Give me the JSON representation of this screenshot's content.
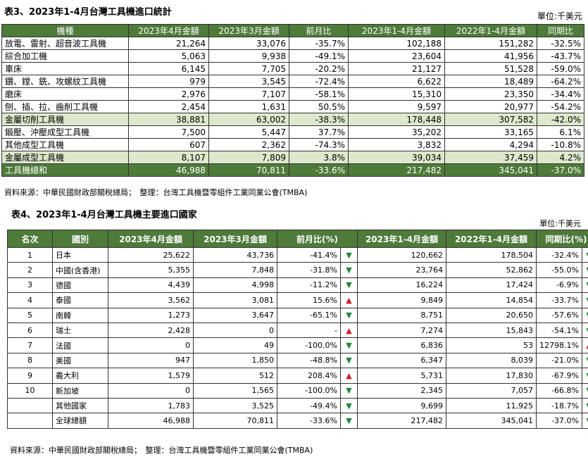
{
  "table3": {
    "title": "表3、2023年1-4月台灣工具機進口統計",
    "unit": "單位:千美元",
    "headers": [
      "機種",
      "2023年4月金額",
      "2023年3月金額",
      "前月比",
      "2023年1-4月金額",
      "2022年1-4月金額",
      "同期比"
    ],
    "rows": [
      {
        "type": "normal",
        "cells": [
          "放電、雷射、超音波工具機",
          "21,264",
          "33,076",
          "-35.7%",
          "102,188",
          "151,282",
          "-32.5%"
        ]
      },
      {
        "type": "normal",
        "cells": [
          "綜合加工機",
          "5,063",
          "9,938",
          "-49.1%",
          "23,604",
          "41,956",
          "-43.7%"
        ]
      },
      {
        "type": "normal",
        "cells": [
          "車床",
          "6,145",
          "7,705",
          "-20.2%",
          "21,127",
          "51,528",
          "-59.0%"
        ]
      },
      {
        "type": "normal",
        "cells": [
          "鑽、鏜、銑、攻螺紋工具機",
          "979",
          "3,545",
          "-72.4%",
          "6,622",
          "18,489",
          "-64.2%"
        ]
      },
      {
        "type": "normal",
        "cells": [
          "磨床",
          "2,976",
          "7,107",
          "-58.1%",
          "15,310",
          "23,350",
          "-34.4%"
        ]
      },
      {
        "type": "normal",
        "cells": [
          "刨、插、拉、齒削工具機",
          "2,454",
          "1,631",
          "50.5%",
          "9,597",
          "20,977",
          "-54.2%"
        ]
      },
      {
        "type": "sub",
        "cells": [
          "金屬切削工具機",
          "38,881",
          "63,002",
          "-38.3%",
          "178,448",
          "307,582",
          "-42.0%"
        ]
      },
      {
        "type": "normal",
        "cells": [
          "鍛壓、沖壓成型工具機",
          "7,500",
          "5,447",
          "37.7%",
          "35,202",
          "33,165",
          "6.1%"
        ]
      },
      {
        "type": "normal",
        "cells": [
          "其他成型工具機",
          "607",
          "2,362",
          "-74.3%",
          "3,832",
          "4,294",
          "-10.8%"
        ]
      },
      {
        "type": "sub",
        "cells": [
          "金屬成型工具機",
          "8,107",
          "7,809",
          "3.8%",
          "39,034",
          "37,459",
          "4.2%"
        ]
      },
      {
        "type": "total",
        "cells": [
          "工具機總和",
          "46,988",
          "70,811",
          "-33.6%",
          "217,482",
          "345,041",
          "-37.0%"
        ]
      }
    ],
    "source": "資料來源：中華民國財政部關稅總局；　整理：台灣工具機暨零組件工業同業公會(TMBA)"
  },
  "table4": {
    "title": "表4、2023年1-4月台灣工具機主要進口國家",
    "unit": "單位:千美元",
    "headers": [
      "名次",
      "國別",
      "2023年4月金額",
      "2023年3月金額",
      "前月比(%)",
      "2023年1-4月金額",
      "2022年1-4月金額",
      "同期比(%)"
    ],
    "rows": [
      {
        "rank": "1",
        "country": "日本",
        "apr": "25,622",
        "mar": "43,736",
        "mom": "-41.4%",
        "mom_dir": "down",
        "ytd23": "120,662",
        "ytd22": "178,504",
        "yoy": "-32.4%",
        "yoy_dir": "down"
      },
      {
        "rank": "2",
        "country": "中國(含香港)",
        "apr": "5,355",
        "mar": "7,848",
        "mom": "-31.8%",
        "mom_dir": "down",
        "ytd23": "23,764",
        "ytd22": "52,862",
        "yoy": "-55.0%",
        "yoy_dir": "down"
      },
      {
        "rank": "3",
        "country": "德國",
        "apr": "4,439",
        "mar": "4,998",
        "mom": "-11.2%",
        "mom_dir": "down",
        "ytd23": "16,224",
        "ytd22": "17,424",
        "yoy": "-6.9%",
        "yoy_dir": "down"
      },
      {
        "rank": "4",
        "country": "泰國",
        "apr": "3,562",
        "mar": "3,081",
        "mom": "15.6%",
        "mom_dir": "up",
        "ytd23": "9,849",
        "ytd22": "14,854",
        "yoy": "-33.7%",
        "yoy_dir": "down"
      },
      {
        "rank": "5",
        "country": "南韓",
        "apr": "1,273",
        "mar": "3,647",
        "mom": "-65.1%",
        "mom_dir": "down",
        "ytd23": "8,751",
        "ytd22": "20,650",
        "yoy": "-57.6%",
        "yoy_dir": "down"
      },
      {
        "rank": "6",
        "country": "瑞士",
        "apr": "2,428",
        "mar": "0",
        "mom": "-",
        "mom_dir": "up",
        "ytd23": "7,274",
        "ytd22": "15,843",
        "yoy": "-54.1%",
        "yoy_dir": "down"
      },
      {
        "rank": "7",
        "country": "法國",
        "apr": "0",
        "mar": "49",
        "mom": "-100.0%",
        "mom_dir": "down",
        "ytd23": "6,836",
        "ytd22": "53",
        "yoy": "12798.1%",
        "yoy_dir": "up"
      },
      {
        "rank": "8",
        "country": "美國",
        "apr": "947",
        "mar": "1,850",
        "mom": "-48.8%",
        "mom_dir": "down",
        "ytd23": "6,347",
        "ytd22": "8,039",
        "yoy": "-21.0%",
        "yoy_dir": "down"
      },
      {
        "rank": "9",
        "country": "義大利",
        "apr": "1,579",
        "mar": "512",
        "mom": "208.4%",
        "mom_dir": "up",
        "ytd23": "5,731",
        "ytd22": "17,830",
        "yoy": "-67.9%",
        "yoy_dir": "down"
      },
      {
        "rank": "10",
        "country": "新加坡",
        "apr": "0",
        "mar": "1,565",
        "mom": "-100.0%",
        "mom_dir": "down",
        "ytd23": "2,345",
        "ytd22": "7,057",
        "yoy": "-66.8%",
        "yoy_dir": "down"
      },
      {
        "rank": "",
        "country": "其他國家",
        "apr": "1,783",
        "mar": "3,525",
        "mom": "-49.4%",
        "mom_dir": "down",
        "ytd23": "9,699",
        "ytd22": "11,925",
        "yoy": "-18.7%",
        "yoy_dir": "down"
      },
      {
        "rank": "",
        "country": "全球總額",
        "apr": "46,988",
        "mar": "70,811",
        "mom": "-33.6%",
        "mom_dir": "down",
        "ytd23": "217,482",
        "ytd22": "345,041",
        "yoy": "-37.0%",
        "yoy_dir": "down"
      }
    ],
    "source": "資料來源：中華民國財政部關稅總局；　整理：台灣工具機暨零組件工業同業公會(TMBA)"
  },
  "colors": {
    "header_green": "#4e7a3a",
    "subtotal_green": "#dde8cc",
    "arrow_down": "#1e8a3a",
    "arrow_up": "#d0202a"
  },
  "icons": {
    "down": "down-triangle-icon",
    "up": "up-triangle-icon"
  }
}
